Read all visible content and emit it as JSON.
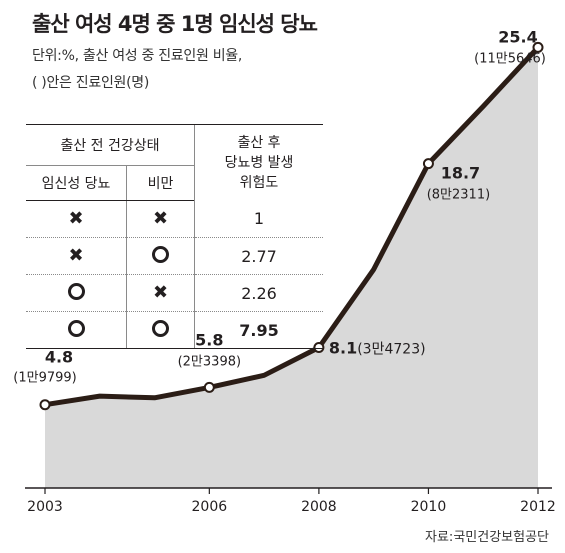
{
  "title": "출산 여성 4명 중 1명 임신성 당뇨",
  "notes": [
    "단위:%, 출산 여성 중 진료인원 비율,",
    "( )안은 진료인원(명)"
  ],
  "source": "자료:국민건강보험공단",
  "risk_table": {
    "header_condition": "출산 전 건강상태",
    "header_risk_lines": [
      "출산 후",
      "당뇨병 발생",
      "위험도"
    ],
    "sub_headers": [
      "임신성 당뇨",
      "비만"
    ],
    "rows": [
      {
        "gestational_diabetes": "x",
        "obesity": "x",
        "risk": "1",
        "bold": false
      },
      {
        "gestational_diabetes": "x",
        "obesity": "o",
        "risk": "2.77",
        "bold": false
      },
      {
        "gestational_diabetes": "o",
        "obesity": "x",
        "risk": "2.26",
        "bold": false
      },
      {
        "gestational_diabetes": "o",
        "obesity": "o",
        "risk": "7.95",
        "bold": true
      }
    ]
  },
  "chart_data": {
    "type": "area",
    "title": "출산 여성 4명 중 1명 임신성 당뇨",
    "x_tick_labels": [
      "2003",
      "2006",
      "2008",
      "2010",
      "2012"
    ],
    "x": [
      2003,
      2004,
      2005,
      2006,
      2007,
      2008,
      2009,
      2010,
      2011,
      2012
    ],
    "series": [
      {
        "values": [
          4.8,
          5.3,
          5.2,
          5.8,
          6.5,
          8.1,
          12.6,
          18.7,
          22.0,
          25.4
        ]
      }
    ],
    "labeled_points": [
      {
        "x": 2003,
        "value": "4.8",
        "count": "(1만9799)"
      },
      {
        "x": 2006,
        "value": "5.8",
        "count": "(2만3398)"
      },
      {
        "x": 2008,
        "value": "8.1",
        "count": "(3만4723)"
      },
      {
        "x": 2010,
        "value": "18.7",
        "count": "(8만2311)"
      },
      {
        "x": 2012,
        "value": "25.4",
        "count": "(11만5646)"
      }
    ],
    "ylim": [
      0,
      26
    ],
    "xlim": [
      2003,
      2012
    ],
    "colors": {
      "line": "#2b1d16",
      "area": "#d9d9d9",
      "marker_fill": "#ffffff"
    }
  }
}
